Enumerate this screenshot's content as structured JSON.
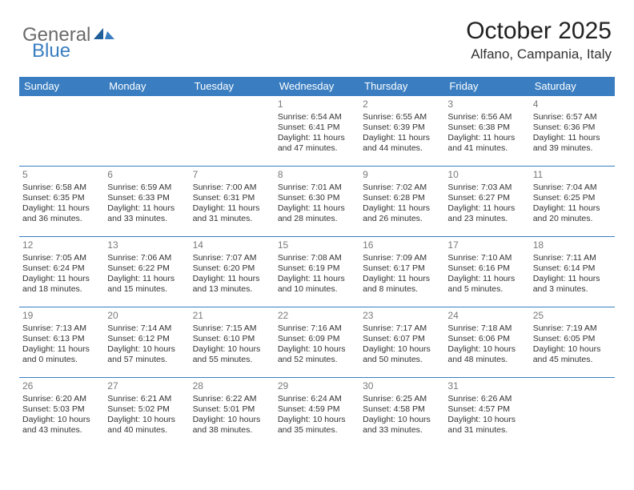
{
  "header": {
    "logo_general": "General",
    "logo_blue": "Blue",
    "month_title": "October 2025",
    "location": "Alfano, Campania, Italy"
  },
  "colors": {
    "brand_blue": "#3a7ec1",
    "text_gray": "#6a6a6a",
    "daynum_gray": "#7a7a7a",
    "background": "#ffffff"
  },
  "daynames": [
    "Sunday",
    "Monday",
    "Tuesday",
    "Wednesday",
    "Thursday",
    "Friday",
    "Saturday"
  ],
  "weeks": [
    [
      null,
      null,
      null,
      {
        "n": "1",
        "sr": "Sunrise: 6:54 AM",
        "ss": "Sunset: 6:41 PM",
        "d1": "Daylight: 11 hours",
        "d2": "and 47 minutes."
      },
      {
        "n": "2",
        "sr": "Sunrise: 6:55 AM",
        "ss": "Sunset: 6:39 PM",
        "d1": "Daylight: 11 hours",
        "d2": "and 44 minutes."
      },
      {
        "n": "3",
        "sr": "Sunrise: 6:56 AM",
        "ss": "Sunset: 6:38 PM",
        "d1": "Daylight: 11 hours",
        "d2": "and 41 minutes."
      },
      {
        "n": "4",
        "sr": "Sunrise: 6:57 AM",
        "ss": "Sunset: 6:36 PM",
        "d1": "Daylight: 11 hours",
        "d2": "and 39 minutes."
      }
    ],
    [
      {
        "n": "5",
        "sr": "Sunrise: 6:58 AM",
        "ss": "Sunset: 6:35 PM",
        "d1": "Daylight: 11 hours",
        "d2": "and 36 minutes."
      },
      {
        "n": "6",
        "sr": "Sunrise: 6:59 AM",
        "ss": "Sunset: 6:33 PM",
        "d1": "Daylight: 11 hours",
        "d2": "and 33 minutes."
      },
      {
        "n": "7",
        "sr": "Sunrise: 7:00 AM",
        "ss": "Sunset: 6:31 PM",
        "d1": "Daylight: 11 hours",
        "d2": "and 31 minutes."
      },
      {
        "n": "8",
        "sr": "Sunrise: 7:01 AM",
        "ss": "Sunset: 6:30 PM",
        "d1": "Daylight: 11 hours",
        "d2": "and 28 minutes."
      },
      {
        "n": "9",
        "sr": "Sunrise: 7:02 AM",
        "ss": "Sunset: 6:28 PM",
        "d1": "Daylight: 11 hours",
        "d2": "and 26 minutes."
      },
      {
        "n": "10",
        "sr": "Sunrise: 7:03 AM",
        "ss": "Sunset: 6:27 PM",
        "d1": "Daylight: 11 hours",
        "d2": "and 23 minutes."
      },
      {
        "n": "11",
        "sr": "Sunrise: 7:04 AM",
        "ss": "Sunset: 6:25 PM",
        "d1": "Daylight: 11 hours",
        "d2": "and 20 minutes."
      }
    ],
    [
      {
        "n": "12",
        "sr": "Sunrise: 7:05 AM",
        "ss": "Sunset: 6:24 PM",
        "d1": "Daylight: 11 hours",
        "d2": "and 18 minutes."
      },
      {
        "n": "13",
        "sr": "Sunrise: 7:06 AM",
        "ss": "Sunset: 6:22 PM",
        "d1": "Daylight: 11 hours",
        "d2": "and 15 minutes."
      },
      {
        "n": "14",
        "sr": "Sunrise: 7:07 AM",
        "ss": "Sunset: 6:20 PM",
        "d1": "Daylight: 11 hours",
        "d2": "and 13 minutes."
      },
      {
        "n": "15",
        "sr": "Sunrise: 7:08 AM",
        "ss": "Sunset: 6:19 PM",
        "d1": "Daylight: 11 hours",
        "d2": "and 10 minutes."
      },
      {
        "n": "16",
        "sr": "Sunrise: 7:09 AM",
        "ss": "Sunset: 6:17 PM",
        "d1": "Daylight: 11 hours",
        "d2": "and 8 minutes."
      },
      {
        "n": "17",
        "sr": "Sunrise: 7:10 AM",
        "ss": "Sunset: 6:16 PM",
        "d1": "Daylight: 11 hours",
        "d2": "and 5 minutes."
      },
      {
        "n": "18",
        "sr": "Sunrise: 7:11 AM",
        "ss": "Sunset: 6:14 PM",
        "d1": "Daylight: 11 hours",
        "d2": "and 3 minutes."
      }
    ],
    [
      {
        "n": "19",
        "sr": "Sunrise: 7:13 AM",
        "ss": "Sunset: 6:13 PM",
        "d1": "Daylight: 11 hours",
        "d2": "and 0 minutes."
      },
      {
        "n": "20",
        "sr": "Sunrise: 7:14 AM",
        "ss": "Sunset: 6:12 PM",
        "d1": "Daylight: 10 hours",
        "d2": "and 57 minutes."
      },
      {
        "n": "21",
        "sr": "Sunrise: 7:15 AM",
        "ss": "Sunset: 6:10 PM",
        "d1": "Daylight: 10 hours",
        "d2": "and 55 minutes."
      },
      {
        "n": "22",
        "sr": "Sunrise: 7:16 AM",
        "ss": "Sunset: 6:09 PM",
        "d1": "Daylight: 10 hours",
        "d2": "and 52 minutes."
      },
      {
        "n": "23",
        "sr": "Sunrise: 7:17 AM",
        "ss": "Sunset: 6:07 PM",
        "d1": "Daylight: 10 hours",
        "d2": "and 50 minutes."
      },
      {
        "n": "24",
        "sr": "Sunrise: 7:18 AM",
        "ss": "Sunset: 6:06 PM",
        "d1": "Daylight: 10 hours",
        "d2": "and 48 minutes."
      },
      {
        "n": "25",
        "sr": "Sunrise: 7:19 AM",
        "ss": "Sunset: 6:05 PM",
        "d1": "Daylight: 10 hours",
        "d2": "and 45 minutes."
      }
    ],
    [
      {
        "n": "26",
        "sr": "Sunrise: 6:20 AM",
        "ss": "Sunset: 5:03 PM",
        "d1": "Daylight: 10 hours",
        "d2": "and 43 minutes."
      },
      {
        "n": "27",
        "sr": "Sunrise: 6:21 AM",
        "ss": "Sunset: 5:02 PM",
        "d1": "Daylight: 10 hours",
        "d2": "and 40 minutes."
      },
      {
        "n": "28",
        "sr": "Sunrise: 6:22 AM",
        "ss": "Sunset: 5:01 PM",
        "d1": "Daylight: 10 hours",
        "d2": "and 38 minutes."
      },
      {
        "n": "29",
        "sr": "Sunrise: 6:24 AM",
        "ss": "Sunset: 4:59 PM",
        "d1": "Daylight: 10 hours",
        "d2": "and 35 minutes."
      },
      {
        "n": "30",
        "sr": "Sunrise: 6:25 AM",
        "ss": "Sunset: 4:58 PM",
        "d1": "Daylight: 10 hours",
        "d2": "and 33 minutes."
      },
      {
        "n": "31",
        "sr": "Sunrise: 6:26 AM",
        "ss": "Sunset: 4:57 PM",
        "d1": "Daylight: 10 hours",
        "d2": "and 31 minutes."
      },
      null
    ]
  ]
}
